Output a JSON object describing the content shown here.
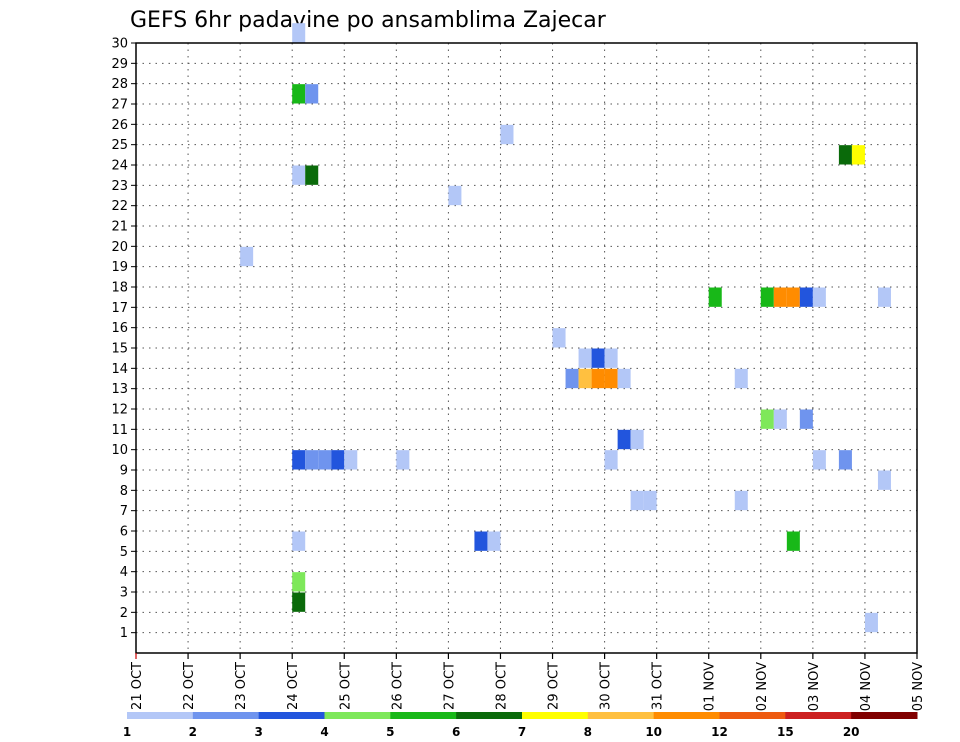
{
  "chart_data": {
    "type": "heatmap",
    "title": "GEFS 6hr padavine po ansamblima Zajecar",
    "xlabel": "",
    "ylabel": "",
    "y_ticks": [
      1,
      2,
      3,
      4,
      5,
      6,
      7,
      8,
      9,
      10,
      11,
      12,
      13,
      14,
      15,
      16,
      17,
      18,
      19,
      20,
      21,
      22,
      23,
      24,
      25,
      26,
      27,
      28,
      29,
      30
    ],
    "ylim": [
      0,
      30
    ],
    "x_ticks": [
      "21 OCT",
      "22 OCT",
      "23 OCT",
      "24 OCT",
      "25 OCT",
      "26 OCT",
      "27 OCT",
      "28 OCT",
      "29 OCT",
      "30 OCT",
      "31 OCT",
      "01 NOV",
      "02 NOV",
      "03 NOV",
      "04 NOV",
      "05 NOV"
    ],
    "x_unit": "days since 21 OCT, 6-hour steps",
    "grid": true,
    "colorbar": {
      "labels": [
        "1",
        "2",
        "3",
        "4",
        "5",
        "6",
        "7",
        "8",
        "10",
        "12",
        "15",
        "20"
      ],
      "colors": [
        "#b3c7f7",
        "#6f94ee",
        "#2255dd",
        "#7ee85a",
        "#18b818",
        "#0a6a0a",
        "#ffff00",
        "#ffc040",
        "#ff8c00",
        "#ee5a10",
        "#cc2020",
        "#800000"
      ]
    },
    "cells": [
      {
        "x": 3.0,
        "member": 30,
        "color": "#b3c7f7"
      },
      {
        "x": 3.0,
        "member": 27,
        "color": "#18b818"
      },
      {
        "x": 3.25,
        "member": 27,
        "color": "#6f94ee"
      },
      {
        "x": 7.0,
        "member": 25,
        "color": "#b3c7f7"
      },
      {
        "x": 13.5,
        "member": 24,
        "color": "#0a6a0a"
      },
      {
        "x": 13.75,
        "member": 24,
        "color": "#ffff00"
      },
      {
        "x": 3.0,
        "member": 23,
        "color": "#b3c7f7"
      },
      {
        "x": 3.25,
        "member": 23,
        "color": "#0a6a0a"
      },
      {
        "x": 6.0,
        "member": 22,
        "color": "#b3c7f7"
      },
      {
        "x": 2.0,
        "member": 19,
        "color": "#b3c7f7"
      },
      {
        "x": 11.0,
        "member": 17,
        "color": "#18b818"
      },
      {
        "x": 12.0,
        "member": 17,
        "color": "#18b818"
      },
      {
        "x": 12.25,
        "member": 17,
        "color": "#ff8c00"
      },
      {
        "x": 12.5,
        "member": 17,
        "color": "#ff8c00"
      },
      {
        "x": 12.75,
        "member": 17,
        "color": "#2255dd"
      },
      {
        "x": 13.0,
        "member": 17,
        "color": "#b3c7f7"
      },
      {
        "x": 14.25,
        "member": 17,
        "color": "#b3c7f7"
      },
      {
        "x": 8.0,
        "member": 15,
        "color": "#b3c7f7"
      },
      {
        "x": 8.5,
        "member": 14,
        "color": "#b3c7f7"
      },
      {
        "x": 8.75,
        "member": 14,
        "color": "#2255dd"
      },
      {
        "x": 9.0,
        "member": 14,
        "color": "#b3c7f7"
      },
      {
        "x": 8.25,
        "member": 13,
        "color": "#6f94ee"
      },
      {
        "x": 8.5,
        "member": 13,
        "color": "#ffc040"
      },
      {
        "x": 8.75,
        "member": 13,
        "color": "#ff8c00"
      },
      {
        "x": 9.0,
        "member": 13,
        "color": "#ff8c00"
      },
      {
        "x": 9.25,
        "member": 13,
        "color": "#b3c7f7"
      },
      {
        "x": 11.5,
        "member": 13,
        "color": "#b3c7f7"
      },
      {
        "x": 12.0,
        "member": 11,
        "color": "#7ee85a"
      },
      {
        "x": 12.25,
        "member": 11,
        "color": "#b3c7f7"
      },
      {
        "x": 12.75,
        "member": 11,
        "color": "#6f94ee"
      },
      {
        "x": 9.25,
        "member": 10,
        "color": "#2255dd"
      },
      {
        "x": 9.5,
        "member": 10,
        "color": "#b3c7f7"
      },
      {
        "x": 3.0,
        "member": 9,
        "color": "#2255dd"
      },
      {
        "x": 3.25,
        "member": 9,
        "color": "#6f94ee"
      },
      {
        "x": 3.5,
        "member": 9,
        "color": "#6f94ee"
      },
      {
        "x": 3.75,
        "member": 9,
        "color": "#2255dd"
      },
      {
        "x": 4.0,
        "member": 9,
        "color": "#b3c7f7"
      },
      {
        "x": 5.0,
        "member": 9,
        "color": "#b3c7f7"
      },
      {
        "x": 9.0,
        "member": 9,
        "color": "#b3c7f7"
      },
      {
        "x": 13.0,
        "member": 9,
        "color": "#b3c7f7"
      },
      {
        "x": 13.5,
        "member": 9,
        "color": "#6f94ee"
      },
      {
        "x": 14.25,
        "member": 8,
        "color": "#b3c7f7"
      },
      {
        "x": 9.5,
        "member": 7,
        "color": "#b3c7f7"
      },
      {
        "x": 9.75,
        "member": 7,
        "color": "#b3c7f7"
      },
      {
        "x": 11.5,
        "member": 7,
        "color": "#b3c7f7"
      },
      {
        "x": 3.0,
        "member": 5,
        "color": "#b3c7f7"
      },
      {
        "x": 6.5,
        "member": 5,
        "color": "#2255dd"
      },
      {
        "x": 6.75,
        "member": 5,
        "color": "#b3c7f7"
      },
      {
        "x": 12.5,
        "member": 5,
        "color": "#18b818"
      },
      {
        "x": 3.0,
        "member": 3,
        "color": "#7ee85a"
      },
      {
        "x": 3.0,
        "member": 2,
        "color": "#0a6a0a"
      },
      {
        "x": 14.0,
        "member": 1,
        "color": "#b3c7f7"
      }
    ]
  }
}
